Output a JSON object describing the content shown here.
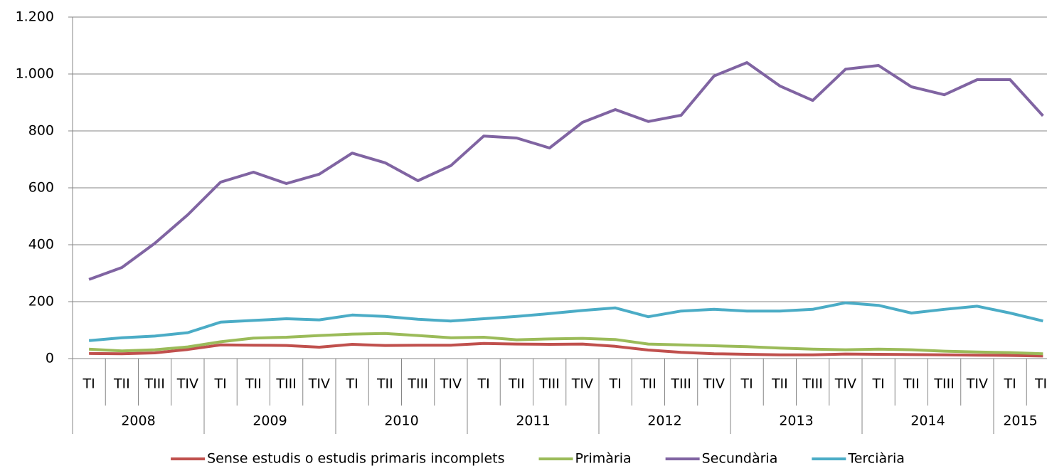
{
  "chart_data": {
    "type": "line",
    "categories": [
      "TI",
      "TII",
      "TIII",
      "TIV",
      "TI",
      "TII",
      "TIII",
      "TIV",
      "TI",
      "TII",
      "TIII",
      "TIV",
      "TI",
      "TII",
      "TIII",
      "TIV",
      "TI",
      "TII",
      "TIII",
      "TIV",
      "TI",
      "TII",
      "TIII",
      "TIV",
      "TI",
      "TII",
      "TIII",
      "TIV",
      "TI",
      "TII"
    ],
    "groups": [
      {
        "label": "2008",
        "count": 4
      },
      {
        "label": "2009",
        "count": 4
      },
      {
        "label": "2010",
        "count": 4
      },
      {
        "label": "2011",
        "count": 4
      },
      {
        "label": "2012",
        "count": 4
      },
      {
        "label": "2013",
        "count": 4
      },
      {
        "label": "2014",
        "count": 4
      },
      {
        "label": "2015",
        "count": 2
      }
    ],
    "series": [
      {
        "name": "Sense estudis o estudis primaris incomplets",
        "color": "#c0504d",
        "values": [
          18,
          17,
          20,
          32,
          48,
          47,
          46,
          40,
          50,
          46,
          47,
          47,
          53,
          51,
          50,
          51,
          43,
          30,
          22,
          17,
          15,
          13,
          13,
          16,
          15,
          14,
          13,
          12,
          11,
          9
        ]
      },
      {
        "name": "Primària",
        "color": "#9bbb59",
        "values": [
          33,
          27,
          31,
          41,
          59,
          72,
          75,
          81,
          86,
          88,
          81,
          73,
          75,
          66,
          69,
          71,
          67,
          51,
          48,
          45,
          42,
          37,
          33,
          31,
          33,
          31,
          26,
          23,
          21,
          17
        ]
      },
      {
        "name": "Secundària",
        "color": "#8064a2",
        "values": [
          278,
          320,
          405,
          505,
          620,
          655,
          615,
          648,
          722,
          688,
          625,
          678,
          782,
          775,
          740,
          830,
          875,
          833,
          855,
          993,
          1040,
          958,
          907,
          1017,
          1030,
          955,
          927,
          980,
          980,
          853
        ]
      },
      {
        "name": "Terciària",
        "color": "#4bacc6",
        "values": [
          63,
          73,
          79,
          91,
          128,
          134,
          140,
          136,
          153,
          148,
          138,
          132,
          140,
          148,
          158,
          169,
          178,
          147,
          167,
          173,
          167,
          167,
          173,
          196,
          187,
          160,
          173,
          184,
          160,
          132
        ]
      }
    ],
    "ylim": [
      0,
      1200
    ],
    "yticks": [
      0,
      200,
      400,
      600,
      800,
      {
        "value": 1000,
        "label": "1.000"
      },
      {
        "value": 1200,
        "label": "1.200"
      }
    ],
    "grid": true,
    "legend": "bottom"
  }
}
